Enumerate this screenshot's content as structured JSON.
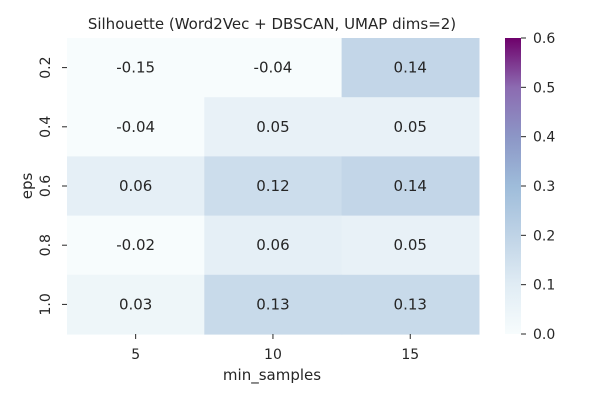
{
  "chart_data": {
    "type": "heatmap",
    "title": "Silhouette (Word2Vec + DBSCAN, UMAP dims=2)",
    "xlabel": "min_samples",
    "ylabel": "eps",
    "x_categories": [
      "5",
      "10",
      "15"
    ],
    "y_categories": [
      "0.2",
      "0.4",
      "0.6",
      "0.8",
      "1.0"
    ],
    "values": [
      [
        -0.15,
        -0.04,
        0.14
      ],
      [
        -0.04,
        0.05,
        0.05
      ],
      [
        0.06,
        0.12,
        0.14
      ],
      [
        -0.02,
        0.06,
        0.05
      ],
      [
        0.03,
        0.13,
        0.13
      ]
    ],
    "cell_labels": [
      [
        "-0.15",
        "-0.04",
        "0.14"
      ],
      [
        "-0.04",
        "0.05",
        "0.05"
      ],
      [
        "0.06",
        "0.12",
        "0.14"
      ],
      [
        "-0.02",
        "0.06",
        "0.05"
      ],
      [
        "0.03",
        "0.13",
        "0.13"
      ]
    ],
    "colormap": "BuPu",
    "color_range": [
      0.0,
      0.6
    ],
    "colorbar_ticks": [
      "0.0",
      "0.1",
      "0.2",
      "0.3",
      "0.4",
      "0.5",
      "0.6"
    ],
    "grid": false,
    "legend": "colorbar-right"
  }
}
